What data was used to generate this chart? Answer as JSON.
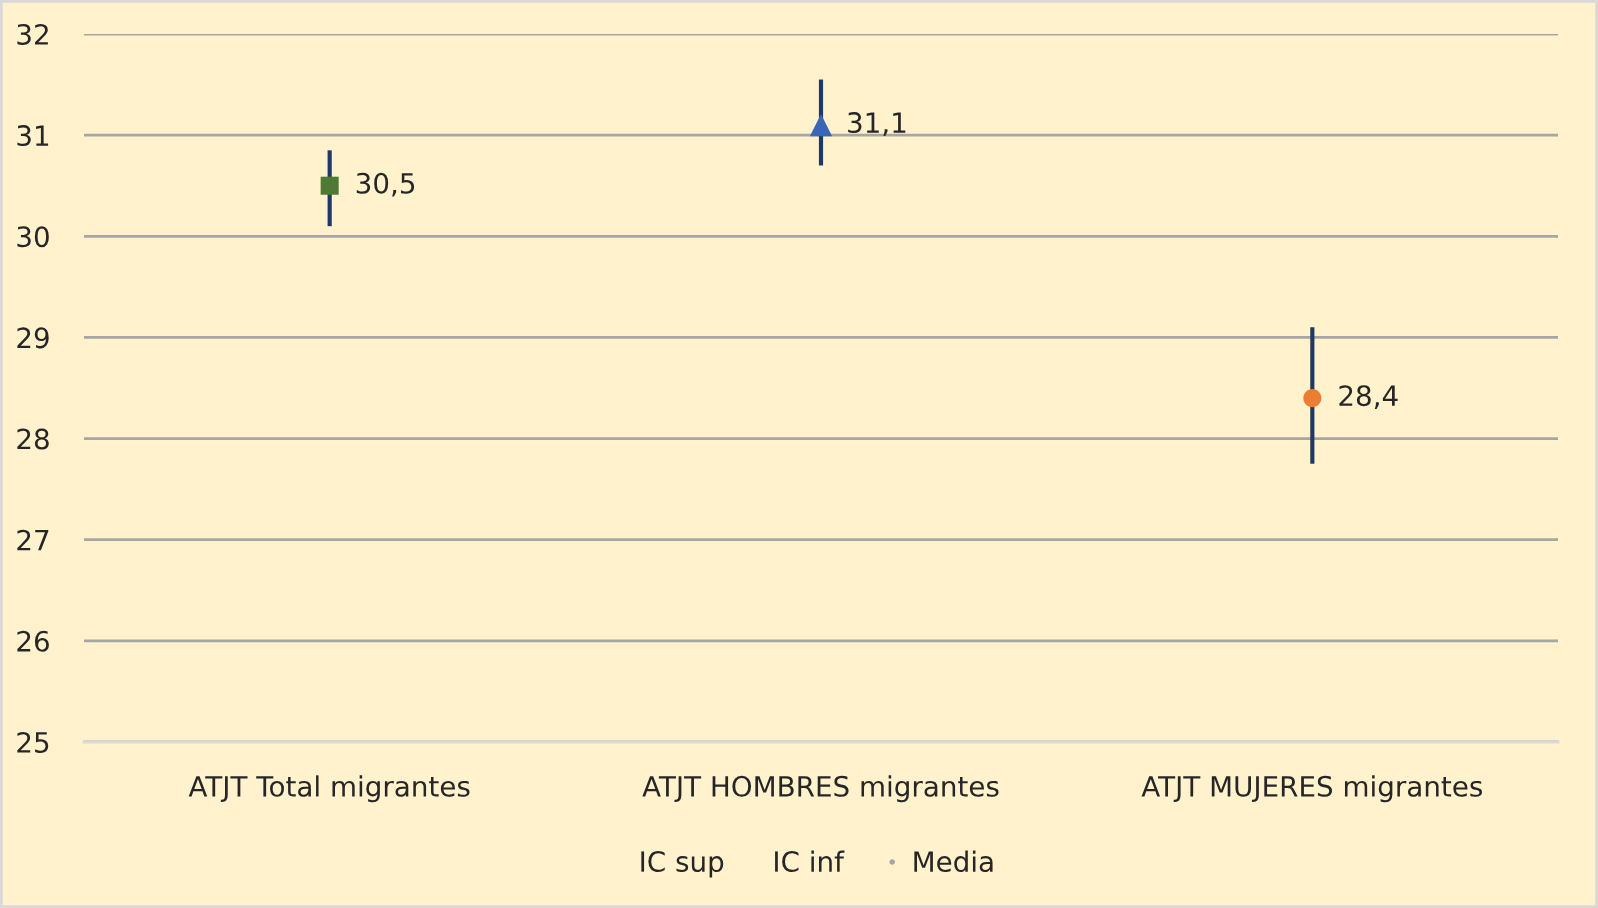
{
  "chart_data": {
    "type": "scatter",
    "categories": [
      "ATJT Total migrantes",
      "ATJT HOMBRES migrantes",
      "ATJT MUJERES migrantes"
    ],
    "series": [
      {
        "name": "Media",
        "color": "#a5a5a5",
        "colors": [
          "#4e7a36",
          "#3a66b8",
          "#ed7d31"
        ],
        "values": [
          30.5,
          31.1,
          28.4
        ],
        "errors": [
          [
            30.1,
            30.85
          ],
          [
            30.7,
            31.55
          ],
          [
            27.75,
            29.1
          ]
        ],
        "marker": [
          "square",
          "triangle",
          "circle"
        ],
        "value_labels": [
          "30,5",
          "31,1",
          "28,4"
        ]
      }
    ],
    "annotations": [
      "IC sup",
      "IC inf"
    ],
    "ylim": [
      25,
      32
    ],
    "yticks": [
      25,
      26,
      27,
      28,
      29,
      30,
      31,
      32
    ],
    "grid": "y",
    "legend": "bottom"
  }
}
